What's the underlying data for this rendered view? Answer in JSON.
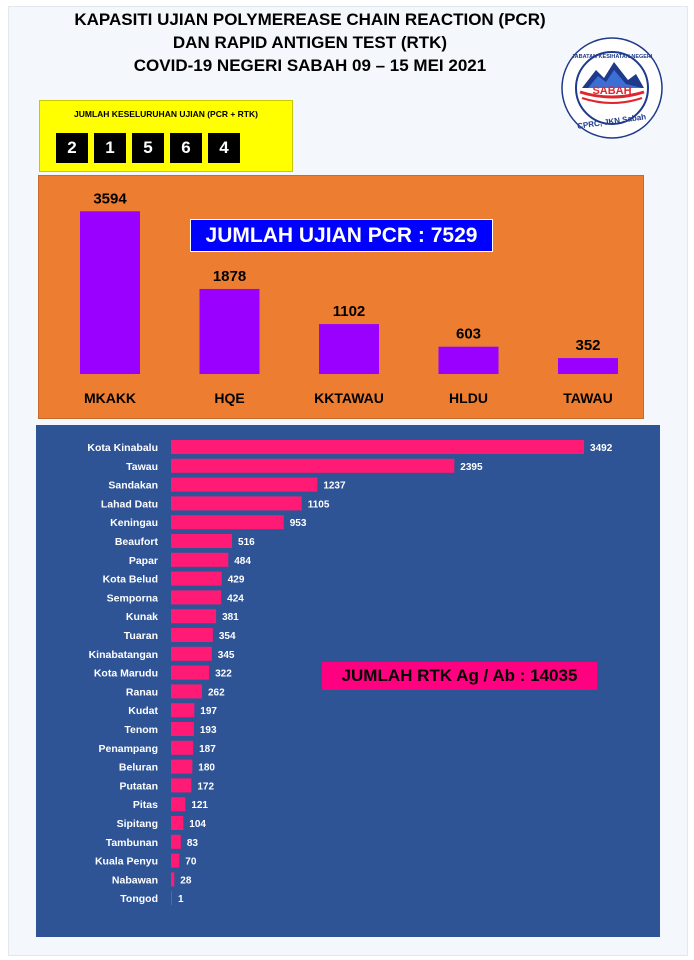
{
  "header": {
    "line1": "KAPASITI UJIAN POLYMEREASE CHAIN REACTION (PCR)",
    "line2": "DAN RAPID ANTIGEN TEST (RTK)",
    "line3": "COVID-19 NEGERI SABAH 09 – 15 MEI 2021"
  },
  "logo": {
    "top_text": "JABATAN KESIHATAN NEGERI",
    "name": "SABAH",
    "bottom_text": "CPRC, JKN Sabah"
  },
  "total_tests": {
    "label": "JUMLAH KESELURUHAN UJIAN (PCR + RTK)",
    "digits": [
      "2",
      "1",
      "5",
      "6",
      "4"
    ]
  },
  "pcr": {
    "total_label": "JUMLAH UJIAN PCR : 7529"
  },
  "rtk": {
    "total_label": "JUMLAH RTK Ag / Ab : 14035"
  },
  "colors": {
    "pcr_bar": "#9900ff",
    "rtk_bar": "#ff1a75",
    "pcr_panel": "#ed7d31",
    "rtk_panel": "#2f5496"
  },
  "chart_data": [
    {
      "type": "bar",
      "orientation": "vertical",
      "categories": [
        "MKAKK",
        "HQE",
        "KKTAWAU",
        "HLDU",
        "TAWAU"
      ],
      "values": [
        3594,
        1878,
        1102,
        603,
        352
      ],
      "ylim": [
        0,
        3600
      ],
      "grid": false
    },
    {
      "type": "bar",
      "orientation": "horizontal",
      "categories": [
        "Kota Kinabalu",
        "Tawau",
        "Sandakan",
        "Lahad Datu",
        "Keningau",
        "Beaufort",
        "Papar",
        "Kota Belud",
        "Semporna",
        "Kunak",
        "Tuaran",
        "Kinabatangan",
        "Kota Marudu",
        "Ranau",
        "Kudat",
        "Tenom",
        "Penampang",
        "Beluran",
        "Putatan",
        "Pitas",
        "Sipitang",
        "Tambunan",
        "Kuala Penyu",
        "Nabawan",
        "Tongod"
      ],
      "values": [
        3492,
        2395,
        1237,
        1105,
        953,
        516,
        484,
        429,
        424,
        381,
        354,
        345,
        322,
        262,
        197,
        193,
        187,
        180,
        172,
        121,
        104,
        83,
        70,
        28,
        1
      ],
      "xlim": [
        0,
        3500
      ],
      "grid": false
    }
  ]
}
